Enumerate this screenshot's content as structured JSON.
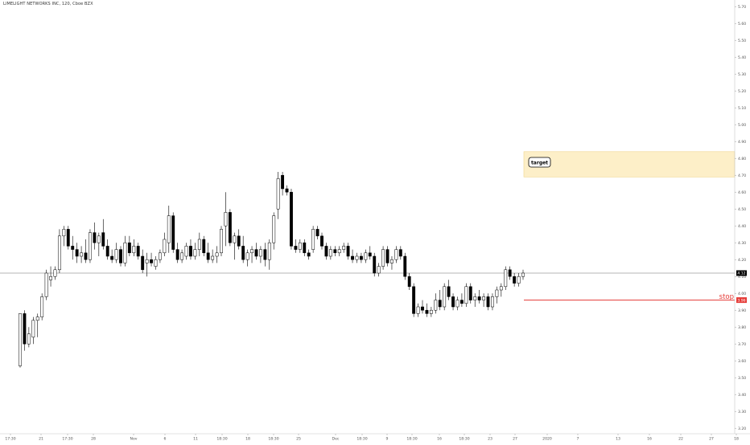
{
  "header": {
    "title": "LIMELIGHT NETWORKS INC, 120, Cboe BZX"
  },
  "chart_data": {
    "type": "candlestick",
    "title": "LIMELIGHT NETWORKS INC, 120, Cboe BZX",
    "ylim": [
      3.15,
      5.72
    ],
    "y_ticks": [
      "5.70",
      "5.60",
      "5.50",
      "5.40",
      "5.30",
      "5.20",
      "5.10",
      "5.00",
      "4.90",
      "4.80",
      "4.70",
      "4.60",
      "4.50",
      "4.40",
      "4.30",
      "4.20",
      "4.10",
      "4.00",
      "3.90",
      "3.80",
      "3.70",
      "3.60",
      "3.50",
      "3.40",
      "3.30",
      "3.20"
    ],
    "x_ticks": [
      "17:30",
      "21",
      "17:30",
      "28",
      "Nov",
      "6",
      "11",
      "18:30",
      "18",
      "18:30",
      "25",
      "Dec",
      "18:30",
      "9",
      "18:30",
      "16",
      "18:30",
      "23",
      "27",
      "2020",
      "7",
      "13",
      "16",
      "22",
      "27",
      "18"
    ],
    "current_price": "4.12",
    "stop_price": "3.96",
    "annotations": {
      "target_label": "target",
      "target_zone": [
        4.69,
        4.84
      ],
      "stop_label": "stop"
    },
    "colors": {
      "up": "#ffffff",
      "down": "#000000",
      "outline": "#000000",
      "stop_line": "#e53935",
      "target_zone": "#fdefc8",
      "target_border": "#f0d58c",
      "price_line": "#9e9e9e",
      "current_label": "#000000"
    },
    "grid": false,
    "candles": [
      [
        3.57,
        3.88,
        3.56,
        3.88
      ],
      [
        3.88,
        3.9,
        3.66,
        3.7
      ],
      [
        3.7,
        3.8,
        3.68,
        3.76
      ],
      [
        3.74,
        3.86,
        3.7,
        3.84
      ],
      [
        3.84,
        3.88,
        3.74,
        3.86
      ],
      [
        3.86,
        4.0,
        3.84,
        3.98
      ],
      [
        3.98,
        4.14,
        3.96,
        4.12
      ],
      [
        4.08,
        4.16,
        4.04,
        4.1
      ],
      [
        4.1,
        4.16,
        4.08,
        4.14
      ],
      [
        4.14,
        4.38,
        4.12,
        4.34
      ],
      [
        4.34,
        4.4,
        4.28,
        4.38
      ],
      [
        4.38,
        4.4,
        4.26,
        4.28
      ],
      [
        4.28,
        4.34,
        4.2,
        4.26
      ],
      [
        4.26,
        4.3,
        4.18,
        4.22
      ],
      [
        4.22,
        4.28,
        4.18,
        4.24
      ],
      [
        4.24,
        4.32,
        4.18,
        4.2
      ],
      [
        4.2,
        4.38,
        4.18,
        4.36
      ],
      [
        4.36,
        4.42,
        4.26,
        4.3
      ],
      [
        4.3,
        4.36,
        4.22,
        4.34
      ],
      [
        4.36,
        4.44,
        4.26,
        4.28
      ],
      [
        4.28,
        4.32,
        4.2,
        4.22
      ],
      [
        4.22,
        4.26,
        4.18,
        4.2
      ],
      [
        4.2,
        4.3,
        4.18,
        4.26
      ],
      [
        4.26,
        4.28,
        4.16,
        4.18
      ],
      [
        4.18,
        4.34,
        4.16,
        4.3
      ],
      [
        4.3,
        4.34,
        4.22,
        4.24
      ],
      [
        4.24,
        4.32,
        4.22,
        4.28
      ],
      [
        4.28,
        4.3,
        4.2,
        4.22
      ],
      [
        4.22,
        4.26,
        4.12,
        4.14
      ],
      [
        4.18,
        4.24,
        4.1,
        4.2
      ],
      [
        4.2,
        4.24,
        4.16,
        4.18
      ],
      [
        4.16,
        4.22,
        4.14,
        4.2
      ],
      [
        4.2,
        4.26,
        4.18,
        4.24
      ],
      [
        4.24,
        4.36,
        4.22,
        4.32
      ],
      [
        4.3,
        4.52,
        4.24,
        4.46
      ],
      [
        4.46,
        4.48,
        4.24,
        4.26
      ],
      [
        4.26,
        4.3,
        4.18,
        4.2
      ],
      [
        4.2,
        4.26,
        4.18,
        4.24
      ],
      [
        4.22,
        4.3,
        4.2,
        4.28
      ],
      [
        4.28,
        4.32,
        4.2,
        4.22
      ],
      [
        4.22,
        4.3,
        4.2,
        4.26
      ],
      [
        4.26,
        4.36,
        4.22,
        4.32
      ],
      [
        4.32,
        4.34,
        4.22,
        4.24
      ],
      [
        4.24,
        4.3,
        4.18,
        4.2
      ],
      [
        4.2,
        4.26,
        4.18,
        4.22
      ],
      [
        4.22,
        4.28,
        4.18,
        4.24
      ],
      [
        4.24,
        4.4,
        4.22,
        4.38
      ],
      [
        4.4,
        4.6,
        4.28,
        4.48
      ],
      [
        4.48,
        4.5,
        4.28,
        4.3
      ],
      [
        4.3,
        4.36,
        4.2,
        4.34
      ],
      [
        4.34,
        4.38,
        4.26,
        4.28
      ],
      [
        4.28,
        4.34,
        4.18,
        4.2
      ],
      [
        4.2,
        4.26,
        4.16,
        4.24
      ],
      [
        4.24,
        4.28,
        4.18,
        4.26
      ],
      [
        4.26,
        4.3,
        4.2,
        4.22
      ],
      [
        4.22,
        4.28,
        4.18,
        4.26
      ],
      [
        4.26,
        4.3,
        4.16,
        4.2
      ],
      [
        4.2,
        4.32,
        4.14,
        4.3
      ],
      [
        4.3,
        4.48,
        4.26,
        4.46
      ],
      [
        4.5,
        4.72,
        4.44,
        4.68
      ],
      [
        4.7,
        4.72,
        4.58,
        4.62
      ],
      [
        4.62,
        4.64,
        4.58,
        4.6
      ],
      [
        4.6,
        4.62,
        4.26,
        4.28
      ],
      [
        4.28,
        4.32,
        4.24,
        4.26
      ],
      [
        4.26,
        4.32,
        4.24,
        4.3
      ],
      [
        4.3,
        4.32,
        4.22,
        4.24
      ],
      [
        4.24,
        4.26,
        4.2,
        4.22
      ],
      [
        4.26,
        4.4,
        4.24,
        4.38
      ],
      [
        4.38,
        4.4,
        4.32,
        4.34
      ],
      [
        4.34,
        4.36,
        4.26,
        4.28
      ],
      [
        4.28,
        4.3,
        4.2,
        4.22
      ],
      [
        4.22,
        4.28,
        4.2,
        4.26
      ],
      [
        4.26,
        4.28,
        4.22,
        4.24
      ],
      [
        4.24,
        4.28,
        4.22,
        4.26
      ],
      [
        4.26,
        4.3,
        4.24,
        4.28
      ],
      [
        4.28,
        4.3,
        4.2,
        4.22
      ],
      [
        4.22,
        4.26,
        4.18,
        4.2
      ],
      [
        4.2,
        4.24,
        4.18,
        4.22
      ],
      [
        4.22,
        4.24,
        4.18,
        4.2
      ],
      [
        4.2,
        4.26,
        4.18,
        4.24
      ],
      [
        4.24,
        4.28,
        4.2,
        4.22
      ],
      [
        4.22,
        4.24,
        4.1,
        4.12
      ],
      [
        4.12,
        4.18,
        4.1,
        4.16
      ],
      [
        4.16,
        4.28,
        4.14,
        4.26
      ],
      [
        4.26,
        4.28,
        4.16,
        4.18
      ],
      [
        4.18,
        4.22,
        4.14,
        4.2
      ],
      [
        4.2,
        4.28,
        4.18,
        4.26
      ],
      [
        4.26,
        4.28,
        4.2,
        4.22
      ],
      [
        4.22,
        4.24,
        4.08,
        4.1
      ],
      [
        4.1,
        4.12,
        4.02,
        4.04
      ],
      [
        4.04,
        4.06,
        3.86,
        3.88
      ],
      [
        3.88,
        3.94,
        3.86,
        3.92
      ],
      [
        3.92,
        3.96,
        3.88,
        3.9
      ],
      [
        3.9,
        3.94,
        3.86,
        3.88
      ],
      [
        3.88,
        3.92,
        3.86,
        3.9
      ],
      [
        3.9,
        4.0,
        3.88,
        3.96
      ],
      [
        3.96,
        4.02,
        3.9,
        3.92
      ],
      [
        3.92,
        4.06,
        3.9,
        4.04
      ],
      [
        4.04,
        4.08,
        3.96,
        3.98
      ],
      [
        3.98,
        4.0,
        3.9,
        3.92
      ],
      [
        3.92,
        3.98,
        3.9,
        3.96
      ],
      [
        3.96,
        4.0,
        3.92,
        3.94
      ],
      [
        3.94,
        4.06,
        3.92,
        4.04
      ],
      [
        4.04,
        4.06,
        3.94,
        3.96
      ],
      [
        3.96,
        4.0,
        3.92,
        3.98
      ],
      [
        3.98,
        4.02,
        3.94,
        3.96
      ],
      [
        3.96,
        4.0,
        3.92,
        3.98
      ],
      [
        3.98,
        4.0,
        3.9,
        3.92
      ],
      [
        3.92,
        4.0,
        3.9,
        3.98
      ],
      [
        3.98,
        4.04,
        3.94,
        4.02
      ],
      [
        4.02,
        4.06,
        3.98,
        4.04
      ],
      [
        4.04,
        4.16,
        4.02,
        4.14
      ],
      [
        4.14,
        4.16,
        4.08,
        4.1
      ],
      [
        4.1,
        4.12,
        4.04,
        4.06
      ],
      [
        4.06,
        4.12,
        4.04,
        4.1
      ],
      [
        4.1,
        4.14,
        4.08,
        4.12
      ]
    ]
  }
}
